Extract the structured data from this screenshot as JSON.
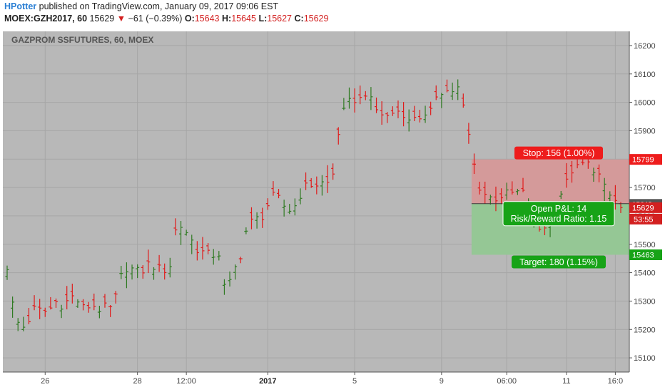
{
  "header": {
    "author": "HPotter",
    "published": "published on TradingView.com, January 09, 2017 09:06 EST",
    "symbol": "MOEX:GZH2017, 60",
    "last": "15629",
    "change": "−61 (−0.39%)",
    "o_label": "O:",
    "o_value": "15643",
    "h_label": "H:",
    "h_value": "15645",
    "l_label": "L:",
    "l_value": "15627",
    "c_label": "C:",
    "c_value": "15629"
  },
  "colors": {
    "background": "#b8b8b8",
    "up": "#2f7a22",
    "down": "#e01b1b",
    "stop_zone": "#d49a9a",
    "target_zone": "#95c795",
    "stop_label": "#ee1c1c",
    "target_label": "#17a317"
  },
  "chart_data": {
    "type": "ohlc",
    "title": "GAZPROM SSFUTURES, 60, MOEX",
    "ylim": [
      15050,
      16250
    ],
    "y_ticks": [
      "15100",
      "15200",
      "15300",
      "15400",
      "15500",
      "15600",
      "15700",
      "15800",
      "15900",
      "16000",
      "16100",
      "16200"
    ],
    "x_ticks": [
      {
        "label": "26",
        "index": 7,
        "bold": false
      },
      {
        "label": "28",
        "index": 24,
        "bold": false
      },
      {
        "label": "12:00",
        "index": 33,
        "bold": false
      },
      {
        "label": "2017",
        "index": 48,
        "bold": true
      },
      {
        "label": "5",
        "index": 64,
        "bold": false
      },
      {
        "label": "9",
        "index": 80,
        "bold": false
      },
      {
        "label": "06:00",
        "index": 92,
        "bold": false
      },
      {
        "label": "11",
        "index": 103,
        "bold": false
      },
      {
        "label": "16:0",
        "index": 112,
        "bold": false
      }
    ],
    "bar_count": 114,
    "close": [
      15420,
      15250,
      15200,
      15230,
      15280,
      15260,
      15270,
      15300,
      15280,
      15320,
      15300,
      15270,
      15290,
      15270,
      15280,
      15270,
      15380,
      15420,
      15410,
      15400,
      15430,
      15420,
      15410,
      15410,
      15570,
      15560,
      15520,
      15480,
      15470,
      15460,
      15470,
      15320,
      15400,
      15450,
      15560,
      15590,
      15590,
      15640,
      15680,
      15640,
      15620,
      15640,
      15700,
      15710,
      15710,
      15720,
      15710,
      15900,
      15990,
      16010,
      16010,
      16040,
      15980,
      15960,
      15950,
      15970,
      15970,
      15930,
      15960,
      15940,
      15960,
      16040,
      16040,
      16040,
      16050,
      15950,
      15800,
      15700,
      15670,
      15660,
      15670,
      15680,
      15680,
      15690,
      15620,
      15550,
      15560,
      15580,
      15660,
      15700,
      15760,
      15770,
      15790,
      15770,
      15740,
      15680,
      15660,
      15629
    ],
    "risk_reward": {
      "entry": 15643,
      "stop": 15799,
      "target": 15463,
      "start_index": 85,
      "end_index": 112
    }
  },
  "labels": {
    "stop": "Stop: 156 (1.00%)",
    "target": "Target: 180 (1.15%)",
    "open_pnl": "Open P&L: 14",
    "rr_ratio": "Risk/Reward Ratio: 1.15",
    "stop_price": "15799",
    "target_price": "15463",
    "last_price": "15629",
    "entry_price": "15643",
    "countdown": "53:55"
  }
}
